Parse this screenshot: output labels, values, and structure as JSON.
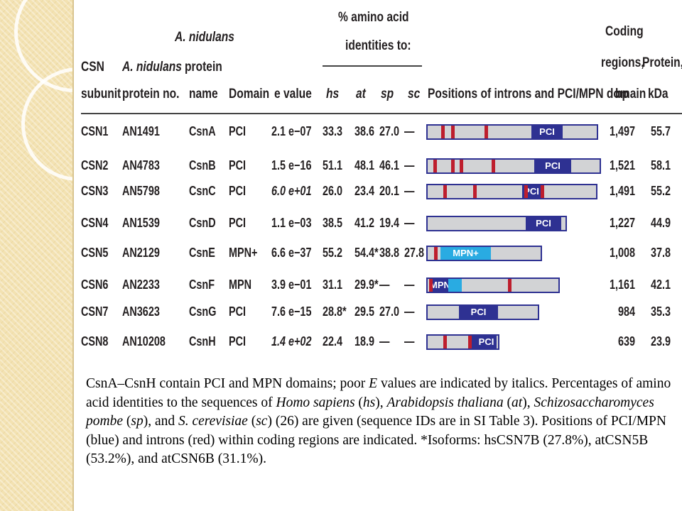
{
  "headers": {
    "csn_subunit": "CSN subunit",
    "protein_no": "A. nidulans protein no.",
    "protein_name_top": "A. nidulans",
    "protein_name": "protein name",
    "domain": "Domain",
    "evalue": "e value",
    "identity_group": "% amino acid identities to:",
    "hs": "hs",
    "at": "at",
    "sp": "sp",
    "sc": "sc",
    "positions": "Positions of introns and PCI/MPN domain",
    "coding": "Coding regions, bp",
    "protein_kda": "Protein, kDa"
  },
  "rows": [
    {
      "subunit": "CSN1",
      "no": "AN1491",
      "name": "CsnA",
      "domain": "PCI",
      "evalue": "2.1 e−07",
      "evalue_italic": false,
      "hs": "33.3",
      "at": "38.6",
      "sp": "27.0",
      "sc": "—",
      "bp": "1,497",
      "kda": "55.7",
      "gene": {
        "length": 1497,
        "introns": [
          120,
          205,
          495
        ],
        "domains": [
          {
            "label": "PCI",
            "start": 900,
            "end": 1170,
            "color": "dark"
          }
        ]
      }
    },
    {
      "subunit": "CSN2",
      "no": "AN4783",
      "name": "CsnB",
      "domain": "PCI",
      "evalue": "1.5 e−16",
      "evalue_italic": false,
      "hs": "51.1",
      "at": "48.1",
      "sp": "46.1",
      "sc": "—",
      "bp": "1,521",
      "kda": "58.1",
      "gene": {
        "length": 1521,
        "introns": [
          50,
          205,
          280,
          555
        ],
        "domains": [
          {
            "label": "PCI",
            "start": 925,
            "end": 1245,
            "color": "dark"
          }
        ]
      }
    },
    {
      "subunit": "CSN3",
      "no": "AN5798",
      "name": "CsnC",
      "domain": "PCI",
      "evalue": "6.0 e+01",
      "evalue_italic": true,
      "hs": "26.0",
      "at": "23.4",
      "sp": "20.1",
      "sc": "—",
      "bp": "1,491",
      "kda": "55.2",
      "gene": {
        "length": 1491,
        "introns": [
          135,
          395,
          840,
          985
        ],
        "domains": [
          {
            "label": "PCI",
            "start": 825,
            "end": 985,
            "color": "dark"
          }
        ]
      }
    },
    {
      "subunit": "CSN4",
      "no": "AN1539",
      "name": "CsnD",
      "domain": "PCI",
      "evalue": "1.1 e−03",
      "evalue_italic": false,
      "hs": "38.5",
      "at": "41.2",
      "sp": "19.4",
      "sc": "—",
      "bp": "1,227",
      "kda": "44.9",
      "gene": {
        "length": 1227,
        "introns": [],
        "domains": [
          {
            "label": "PCI",
            "start": 855,
            "end": 1165,
            "color": "dark"
          }
        ]
      }
    },
    {
      "subunit": "CSN5",
      "no": "AN2129",
      "name": "CsnE",
      "domain": "MPN+",
      "evalue": "6.6 e−37",
      "evalue_italic": false,
      "hs": "55.2",
      "at": "54.4*",
      "sp": "38.8",
      "sc": "27.8",
      "bp": "1,008",
      "kda": "37.8",
      "gene": {
        "length": 1008,
        "introns": [
          55
        ],
        "domains": [
          {
            "label": "MPN+",
            "start": 110,
            "end": 550,
            "color": "light"
          }
        ]
      }
    },
    {
      "subunit": "CSN6",
      "no": "AN2233",
      "name": "CsnF",
      "domain": "MPN",
      "evalue": "3.9 e−01",
      "evalue_italic": false,
      "hs": "31.1",
      "at": "29.9*",
      "sp": "—",
      "sc": "—",
      "bp": "1,161",
      "kda": "42.1",
      "gene": {
        "length": 1161,
        "introns": [
          15,
          700
        ],
        "domains": [
          {
            "label": "MPN",
            "start": 20,
            "end": 180,
            "color": "dark"
          },
          {
            "label": "",
            "start": 180,
            "end": 300,
            "color": "light"
          }
        ]
      }
    },
    {
      "subunit": "CSN7",
      "no": "AN3623",
      "name": "CsnG",
      "domain": "PCI",
      "evalue": "7.6 e−15",
      "evalue_italic": false,
      "hs": "28.8*",
      "at": "29.5",
      "sp": "27.0",
      "sc": "—",
      "bp": "984",
      "kda": "35.3",
      "gene": {
        "length": 984,
        "introns": [],
        "domains": [
          {
            "label": "PCI",
            "start": 270,
            "end": 610,
            "color": "dark"
          }
        ]
      }
    },
    {
      "subunit": "CSN8",
      "no": "AN10208",
      "name": "CsnH",
      "domain": "PCI",
      "evalue": "1.4 e+02",
      "evalue_italic": true,
      "hs": "22.4",
      "at": "18.9",
      "sp": "—",
      "sc": "—",
      "bp": "639",
      "kda": "23.9",
      "gene": {
        "length": 639,
        "introns": [
          135,
          350
        ],
        "domains": [
          {
            "label": "",
            "start": 350,
            "end": 420,
            "color": "dark"
          },
          {
            "label": "PCI",
            "start": 420,
            "end": 600,
            "color": "dark"
          }
        ]
      }
    }
  ],
  "colors": {
    "domain_dark": "#2e3192",
    "domain_light": "#29abe2",
    "intron": "#be1e2d",
    "bar_fill": "#d2d3d5"
  },
  "caption": {
    "t1": "CsnA–CsnH contain PCI and MPN domains; poor ",
    "t2": "E",
    "t3": " values are indicated by italics. Percentages of amino acid identities to the sequences of ",
    "t4": "Homo sapiens",
    "t5": " (",
    "t6": "hs",
    "t7": "), ",
    "t8": "Arabidopsis thaliana",
    "t9": " (",
    "t10": "at",
    "t11": "), ",
    "t12": "Schizosaccharomyces pombe",
    "t13": " (",
    "t14": "sp",
    "t15": "), and ",
    "t16": "S. cerevisiae",
    "t17": " (",
    "t18": "sc",
    "t19": ") (26) are given (sequence IDs are in SI Table 3). Positions of PCI/MPN (blue) and introns (red) within coding regions are indicated. *Isoforms: hsCSN7B (27.8%), atCSN5B (53.2%), and atCSN6B (31.1%)."
  }
}
